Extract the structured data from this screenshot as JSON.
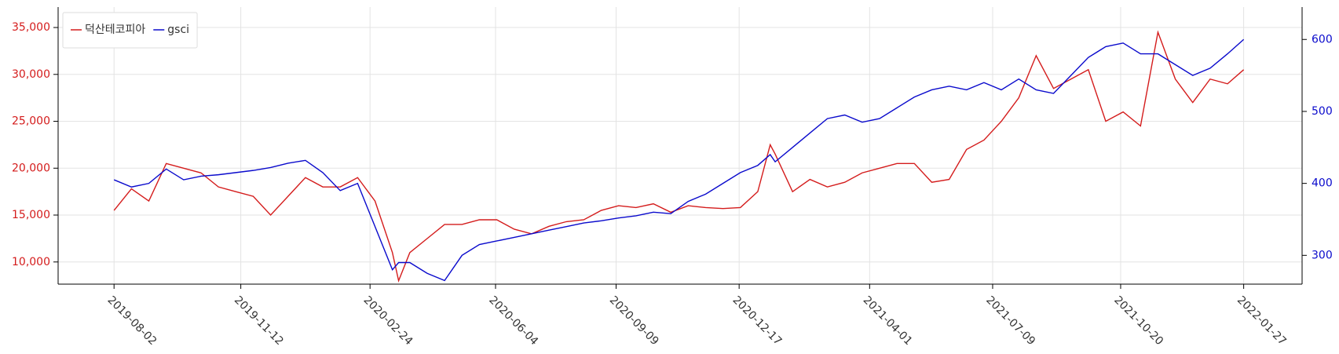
{
  "chart_data": {
    "type": "line",
    "x": [
      "2019-08-02",
      "2019-08-16",
      "2019-08-30",
      "2019-09-13",
      "2019-09-27",
      "2019-10-11",
      "2019-10-25",
      "2019-11-08",
      "2019-11-22",
      "2019-12-06",
      "2019-12-20",
      "2020-01-03",
      "2020-01-17",
      "2020-01-31",
      "2020-02-14",
      "2020-02-28",
      "2020-03-13",
      "2020-03-18",
      "2020-03-27",
      "2020-04-10",
      "2020-04-24",
      "2020-05-08",
      "2020-05-22",
      "2020-06-05",
      "2020-06-19",
      "2020-07-03",
      "2020-07-17",
      "2020-07-31",
      "2020-08-14",
      "2020-08-28",
      "2020-09-11",
      "2020-09-25",
      "2020-10-09",
      "2020-10-23",
      "2020-11-06",
      "2020-11-20",
      "2020-12-04",
      "2020-12-18",
      "2021-01-01",
      "2021-01-11",
      "2021-01-15",
      "2021-01-29",
      "2021-02-12",
      "2021-02-26",
      "2021-03-12",
      "2021-03-26",
      "2021-04-09",
      "2021-04-23",
      "2021-05-07",
      "2021-05-21",
      "2021-06-04",
      "2021-06-18",
      "2021-07-02",
      "2021-07-16",
      "2021-07-30",
      "2021-08-13",
      "2021-08-27",
      "2021-09-10",
      "2021-09-24",
      "2021-10-08",
      "2021-10-22",
      "2021-11-05",
      "2021-11-19",
      "2021-12-03",
      "2021-12-17",
      "2021-12-31",
      "2022-01-14",
      "2022-01-27"
    ],
    "series": [
      {
        "name": "덕산테코피아",
        "color": "#d41c1c",
        "axis": "y",
        "values": [
          15500,
          17800,
          16500,
          20500,
          20000,
          19500,
          18000,
          17500,
          17000,
          15000,
          17000,
          19000,
          18000,
          18000,
          19000,
          16500,
          11000,
          8000,
          11000,
          12500,
          14000,
          14000,
          14500,
          14500,
          13500,
          13000,
          13800,
          14300,
          14500,
          15500,
          16000,
          15800,
          16200,
          15300,
          16000,
          15800,
          15700,
          15800,
          17500,
          22500,
          21500,
          17500,
          18800,
          18000,
          18500,
          19500,
          20000,
          20500,
          20500,
          18500,
          18800,
          22000,
          23000,
          25000,
          27500,
          32000,
          28500,
          29500,
          30500,
          25000,
          26000,
          24500,
          34500,
          29500,
          27000,
          29500,
          29000,
          30500
        ]
      },
      {
        "name": "gsci",
        "color": "#0a0acc",
        "axis": "y2",
        "values": [
          405,
          395,
          400,
          420,
          405,
          410,
          412,
          415,
          418,
          422,
          428,
          432,
          415,
          390,
          400,
          340,
          280,
          290,
          290,
          275,
          265,
          300,
          315,
          320,
          325,
          330,
          335,
          340,
          345,
          348,
          352,
          355,
          360,
          358,
          375,
          385,
          400,
          415,
          425,
          440,
          430,
          450,
          470,
          490,
          495,
          485,
          490,
          505,
          520,
          530,
          535,
          530,
          540,
          530,
          545,
          530,
          525,
          550,
          575,
          590,
          595,
          580,
          580,
          565,
          550,
          560,
          580,
          600
        ]
      }
    ],
    "xlim": [
      "2019-06-18",
      "2022-03-15"
    ],
    "xticks": [
      "2019-08-02",
      "2019-11-12",
      "2020-02-24",
      "2020-06-04",
      "2020-09-09",
      "2020-12-17",
      "2021-04-01",
      "2021-07-09",
      "2021-10-20",
      "2022-01-27"
    ],
    "ylim": [
      7636,
      37180
    ],
    "yticks": [
      {
        "value": 10000,
        "label": "10,000"
      },
      {
        "value": 15000,
        "label": "15,000"
      },
      {
        "value": 20000,
        "label": "20,000"
      },
      {
        "value": 25000,
        "label": "25,000"
      },
      {
        "value": 30000,
        "label": "30,000"
      },
      {
        "value": 35000,
        "label": "35,000"
      }
    ],
    "y2lim": [
      260,
      645
    ],
    "y2ticks": [
      300,
      400,
      500,
      600
    ],
    "grid": true,
    "legend": "upper left"
  }
}
